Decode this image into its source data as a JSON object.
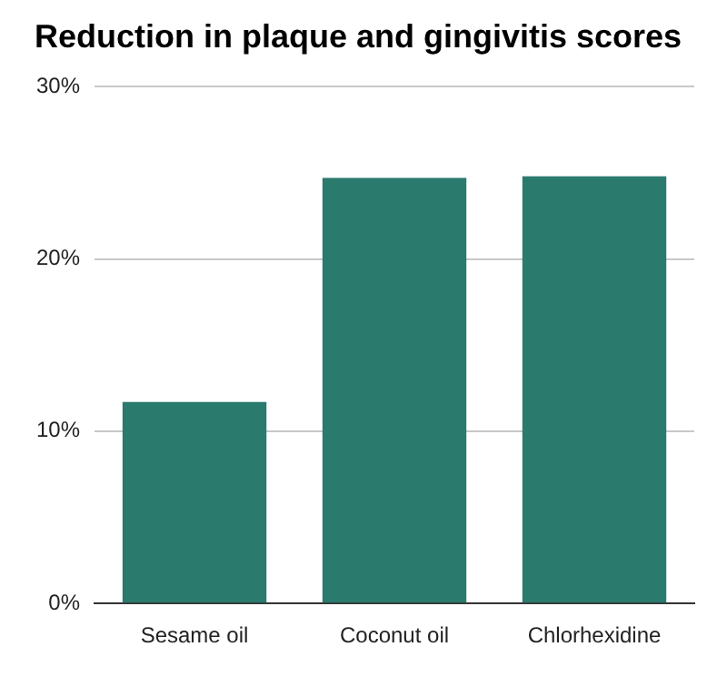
{
  "chart_data": {
    "type": "bar",
    "title": "Reduction in plaque and gingivitis scores",
    "categories": [
      "Sesame oil",
      "Coconut oil",
      "Chlorhexidine"
    ],
    "values": [
      11.7,
      24.7,
      24.8
    ],
    "color": "#2a7a6e",
    "ylim": [
      0,
      30
    ],
    "yticks": [
      {
        "value": 0,
        "label": "0%"
      },
      {
        "value": 10,
        "label": "10%"
      },
      {
        "value": 20,
        "label": "20%"
      },
      {
        "value": 30,
        "label": "30%"
      }
    ],
    "grid": "y"
  }
}
